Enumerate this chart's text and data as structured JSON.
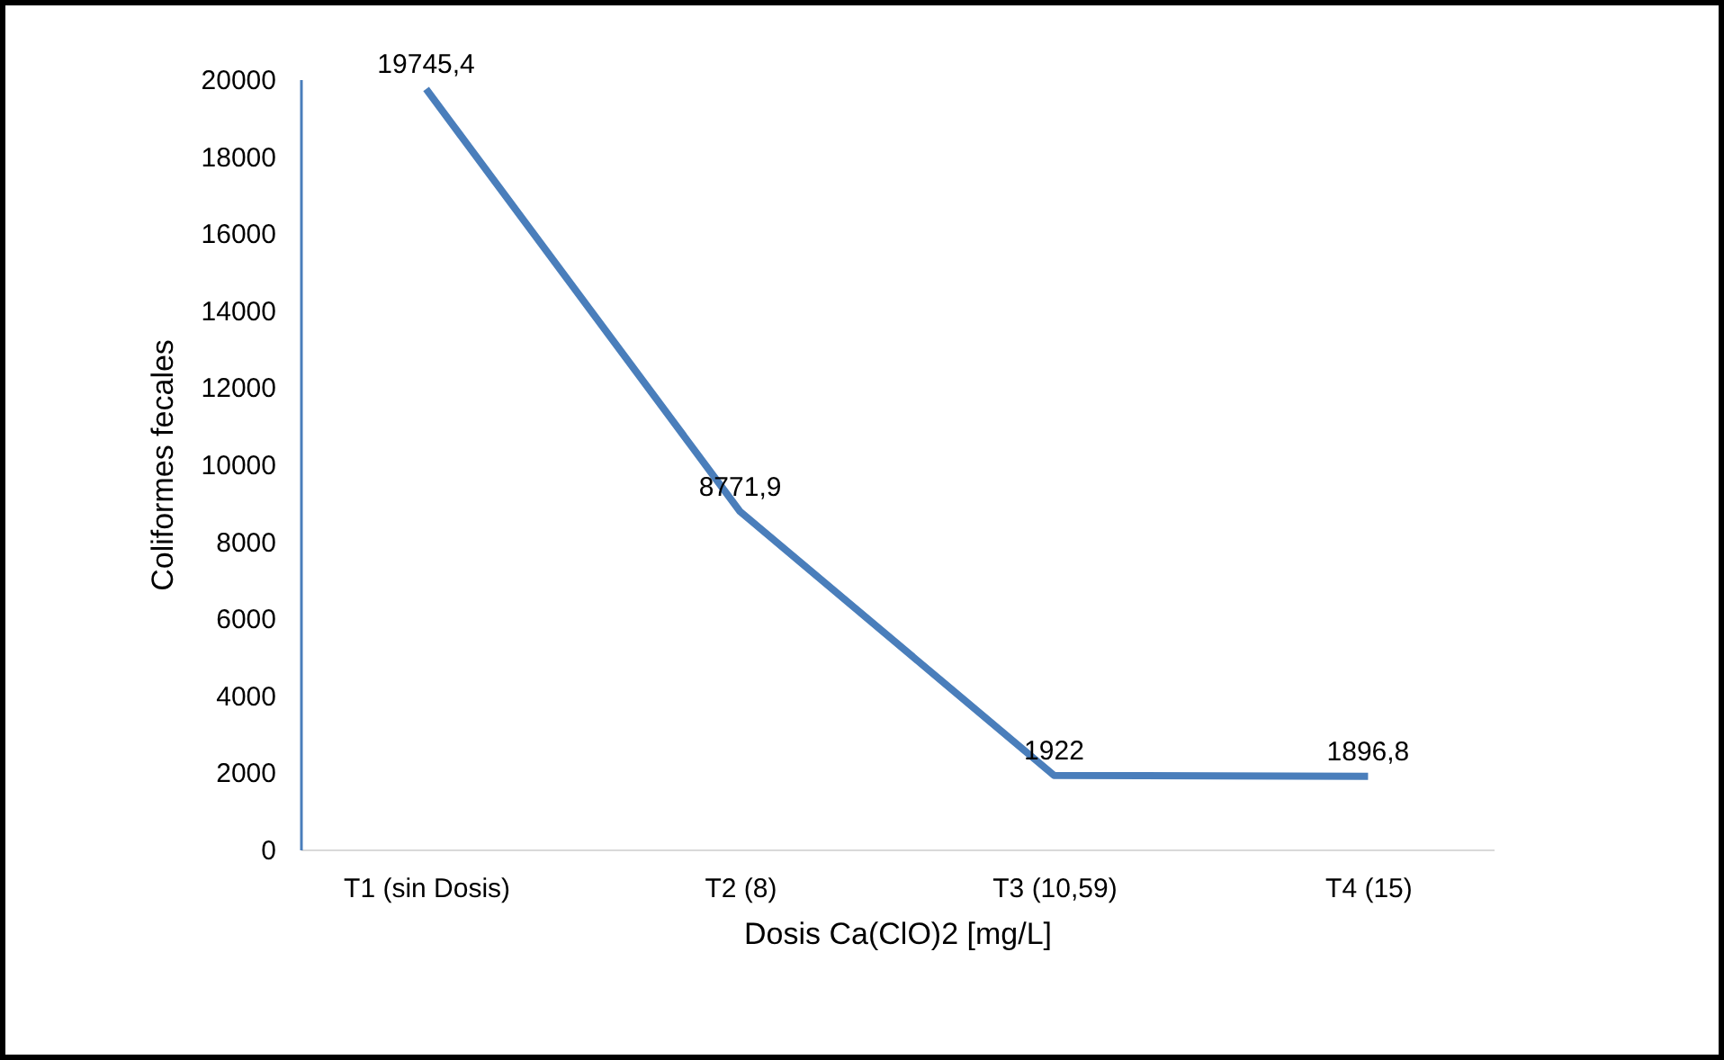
{
  "chart_data": {
    "type": "line",
    "xlabel": "Dosis Ca(ClO)2 [mg/L]",
    "ylabel": "Coliformes fecales",
    "categories": [
      "T1 (sin Dosis)",
      "T2 (8)",
      "T3 (10,59)",
      "T4 (15)"
    ],
    "series": [
      {
        "color": "#4a7ebb",
        "values": [
          19745.4,
          8771.9,
          1922,
          1896.8
        ],
        "value_labels": [
          "19745,4",
          "8771,9",
          "1922",
          "1896,8"
        ]
      }
    ],
    "ylim": [
      0,
      20000
    ],
    "yticks": [
      0,
      2000,
      4000,
      6000,
      8000,
      10000,
      12000,
      14000,
      16000,
      18000,
      20000
    ],
    "grid": false,
    "legend": false,
    "marker": "none",
    "line_style": "solid"
  }
}
